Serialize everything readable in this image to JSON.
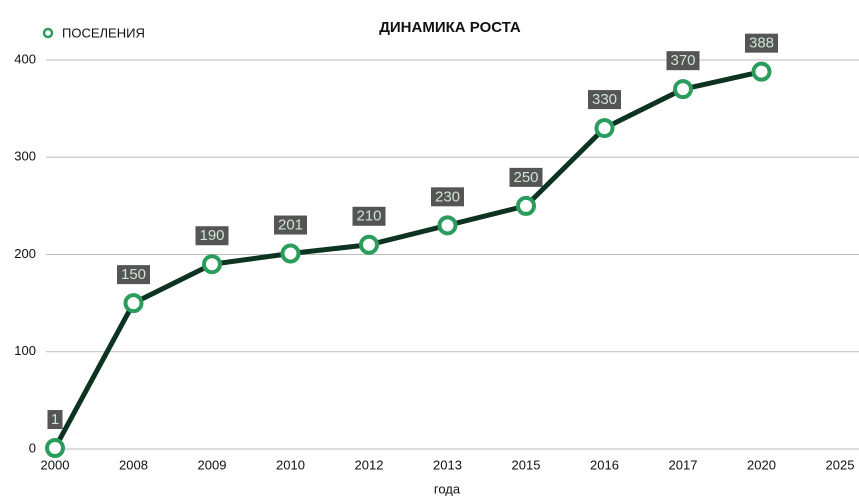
{
  "chart_data": {
    "type": "line",
    "title": "ДИНАМИКА РОСТА",
    "x_label": "года",
    "categories": [
      "2000",
      "2008",
      "2009",
      "2010",
      "2012",
      "2013",
      "2015",
      "2016",
      "2017",
      "2020",
      "2025"
    ],
    "series": [
      {
        "name": "ПОСЕЛЕНИЯ",
        "color": "#0d3321",
        "marker_color": "#2a9d5c",
        "values": [
          1,
          150,
          190,
          201,
          210,
          230,
          250,
          330,
          370,
          388,
          null
        ]
      }
    ],
    "ylim": [
      0,
      400
    ],
    "yticks": [
      0,
      100,
      200,
      300,
      400
    ],
    "grid": true,
    "legend": "top-left"
  }
}
